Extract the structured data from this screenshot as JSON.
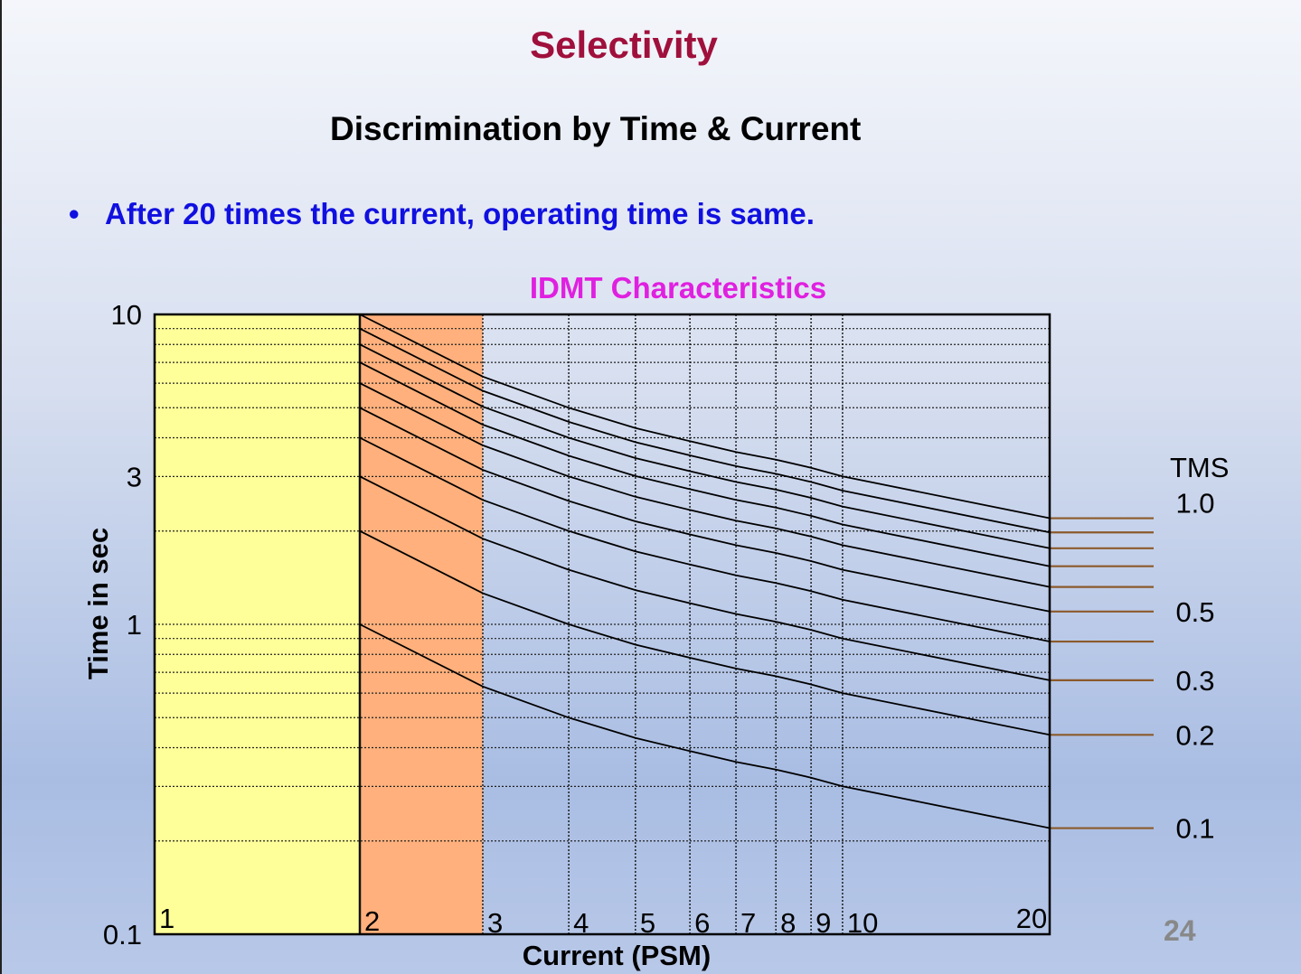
{
  "slide": {
    "title": "Selectivity",
    "subtitle": "Discrimination by Time & Current",
    "bullet": "After 20 times the current, operating time is same.",
    "slide_number": "24"
  },
  "colors": {
    "title": "#a0103c",
    "bullet": "#1010e0",
    "chart_title": "#e020e0",
    "zone_1_2": "#ffff99",
    "zone_2_3": "#ffb07c",
    "tms_leader": "#8b5a2b"
  },
  "chart_data": {
    "type": "line",
    "title": "IDMT Characteristics",
    "xlabel": "Current (PSM)",
    "ylabel": "Time in sec",
    "x_scale": "log",
    "y_scale": "log",
    "xlim": [
      1,
      20
    ],
    "ylim": [
      0.1,
      10
    ],
    "x_ticks": [
      {
        "value": 1,
        "label": "1"
      },
      {
        "value": 2,
        "label": "2"
      },
      {
        "value": 3,
        "label": "3"
      },
      {
        "value": 4,
        "label": "4"
      },
      {
        "value": 5,
        "label": "5"
      },
      {
        "value": 6,
        "label": "6"
      },
      {
        "value": 7,
        "label": "7"
      },
      {
        "value": 8,
        "label": "8"
      },
      {
        "value": 9,
        "label": "9"
      },
      {
        "value": 10,
        "label": "10"
      },
      {
        "value": 20,
        "label": "20"
      }
    ],
    "y_ticks": [
      {
        "value": 10,
        "label": "10"
      },
      {
        "value": 3,
        "label": "3"
      },
      {
        "value": 1,
        "label": "1"
      },
      {
        "value": 0.1,
        "label": "0.1"
      }
    ],
    "grid": true,
    "shaded_zones": [
      {
        "from": 1,
        "to": 2
      },
      {
        "from": 2,
        "to": 3
      }
    ],
    "legend_title": "TMS",
    "x": [
      2,
      3,
      4,
      5,
      6,
      7,
      8,
      9,
      10,
      20
    ],
    "series": [
      {
        "tms": 0.1,
        "label": "0.1",
        "values": [
          1.0,
          0.63,
          0.5,
          0.43,
          0.39,
          0.36,
          0.34,
          0.32,
          0.3,
          0.22
        ]
      },
      {
        "tms": 0.2,
        "label": "0.2",
        "values": [
          2.0,
          1.26,
          1.0,
          0.86,
          0.78,
          0.72,
          0.68,
          0.64,
          0.6,
          0.44
        ]
      },
      {
        "tms": 0.3,
        "label": "0.3",
        "values": [
          3.0,
          1.89,
          1.5,
          1.29,
          1.17,
          1.08,
          1.02,
          0.96,
          0.9,
          0.66
        ]
      },
      {
        "tms": 0.4,
        "label": "",
        "values": [
          4.0,
          2.52,
          2.0,
          1.72,
          1.56,
          1.44,
          1.36,
          1.28,
          1.2,
          0.88
        ]
      },
      {
        "tms": 0.5,
        "label": "0.5",
        "values": [
          5.0,
          3.15,
          2.5,
          2.15,
          1.95,
          1.8,
          1.7,
          1.6,
          1.5,
          1.1
        ]
      },
      {
        "tms": 0.6,
        "label": "",
        "values": [
          6.0,
          3.78,
          3.0,
          2.58,
          2.34,
          2.16,
          2.04,
          1.92,
          1.8,
          1.32
        ]
      },
      {
        "tms": 0.7,
        "label": "",
        "values": [
          7.0,
          4.41,
          3.5,
          3.01,
          2.73,
          2.52,
          2.38,
          2.24,
          2.1,
          1.54
        ]
      },
      {
        "tms": 0.8,
        "label": "",
        "values": [
          8.0,
          5.04,
          4.0,
          3.44,
          3.12,
          2.88,
          2.72,
          2.56,
          2.4,
          1.76
        ]
      },
      {
        "tms": 0.9,
        "label": "",
        "values": [
          9.0,
          5.67,
          4.5,
          3.87,
          3.51,
          3.24,
          3.06,
          2.88,
          2.7,
          1.98
        ]
      },
      {
        "tms": 1.0,
        "label": "1.0",
        "values": [
          10.0,
          6.3,
          5.0,
          4.3,
          3.9,
          3.6,
          3.4,
          3.2,
          3.0,
          2.2
        ]
      }
    ]
  }
}
